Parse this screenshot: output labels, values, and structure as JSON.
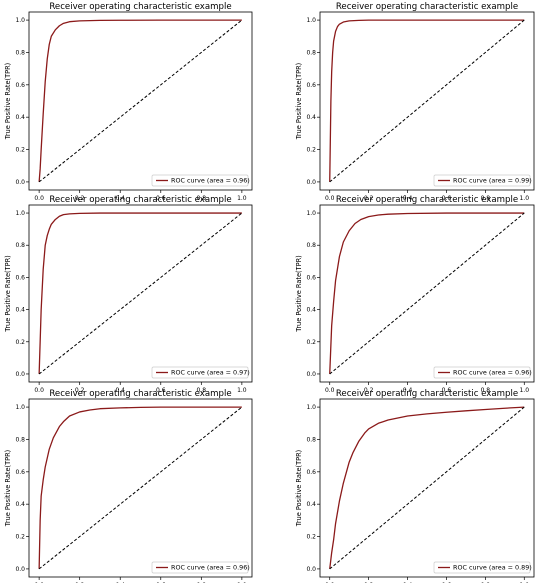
{
  "chart_data": [
    {
      "type": "line",
      "title": "Receiver operating characteristic example",
      "xlabel": "",
      "ylabel": "True Positive Rate(TPR)",
      "xlim": [
        0,
        1
      ],
      "ylim": [
        0,
        1
      ],
      "xticks": [
        "0.0",
        "0.2",
        "0.4",
        "0.6",
        "0.8",
        "1.0"
      ],
      "yticks": [
        "0.0",
        "0.2",
        "0.4",
        "0.6",
        "0.8",
        "1.0"
      ],
      "legend_position": "bottom-right",
      "series": [
        {
          "name": "ROC curve (area = 0.96)",
          "color": "#8b1a1a",
          "x": [
            0,
            0.005,
            0.01,
            0.02,
            0.03,
            0.04,
            0.05,
            0.06,
            0.08,
            0.1,
            0.12,
            0.15,
            0.2,
            0.3,
            0.4,
            0.6,
            0.8,
            1.0
          ],
          "y": [
            0,
            0.08,
            0.2,
            0.42,
            0.62,
            0.76,
            0.85,
            0.9,
            0.94,
            0.965,
            0.98,
            0.99,
            0.995,
            0.998,
            0.999,
            1.0,
            1.0,
            1.0
          ]
        },
        {
          "name": "",
          "style": "dashed",
          "color": "#000000",
          "x": [
            0,
            1
          ],
          "y": [
            0,
            1
          ]
        }
      ]
    },
    {
      "type": "line",
      "title": "Receiver operating characteristic example",
      "xlabel": "",
      "ylabel": "True Positive Rate(TPR)",
      "xlim": [
        0,
        1
      ],
      "ylim": [
        0,
        1
      ],
      "xticks": [
        "0.0",
        "0.2",
        "0.4",
        "0.6",
        "0.8",
        "1.0"
      ],
      "yticks": [
        "0.0",
        "0.2",
        "0.4",
        "0.6",
        "0.8",
        "1.0"
      ],
      "legend_position": "bottom-right",
      "series": [
        {
          "name": "ROC curve (area = 0.99)",
          "color": "#8b1a1a",
          "x": [
            0,
            0.003,
            0.006,
            0.01,
            0.015,
            0.02,
            0.03,
            0.04,
            0.05,
            0.07,
            0.1,
            0.15,
            0.2,
            0.4,
            0.6,
            1.0
          ],
          "y": [
            0,
            0.25,
            0.5,
            0.68,
            0.8,
            0.87,
            0.93,
            0.96,
            0.975,
            0.988,
            0.995,
            0.998,
            1.0,
            1.0,
            1.0,
            1.0
          ]
        },
        {
          "name": "",
          "style": "dashed",
          "color": "#000000",
          "x": [
            0,
            1
          ],
          "y": [
            0,
            1
          ]
        }
      ]
    },
    {
      "type": "line",
      "title": "Receiver operating characteristic example",
      "xlabel": "",
      "ylabel": "True Positive Rate(TPR)",
      "xlim": [
        0,
        1
      ],
      "ylim": [
        0,
        1
      ],
      "xticks": [
        "0.0",
        "0.2",
        "0.4",
        "0.6",
        "0.8",
        "1.0"
      ],
      "yticks": [
        "0.0",
        "0.2",
        "0.4",
        "0.6",
        "0.8",
        "1.0"
      ],
      "legend_position": "bottom-right",
      "series": [
        {
          "name": "ROC curve (area = 0.97)",
          "color": "#8b1a1a",
          "x": [
            0,
            0.01,
            0.02,
            0.03,
            0.04,
            0.05,
            0.06,
            0.08,
            0.1,
            0.12,
            0.15,
            0.2,
            0.3,
            0.5,
            0.7,
            1.0
          ],
          "y": [
            0,
            0.4,
            0.65,
            0.8,
            0.86,
            0.9,
            0.93,
            0.96,
            0.98,
            0.99,
            0.995,
            0.998,
            1.0,
            1.0,
            1.0,
            1.0
          ]
        },
        {
          "name": "",
          "style": "dashed",
          "color": "#000000",
          "x": [
            0,
            1
          ],
          "y": [
            0,
            1
          ]
        }
      ]
    },
    {
      "type": "line",
      "title": "Receiver operating characteristic example",
      "xlabel": "",
      "ylabel": "True Positive Rate(TPR)",
      "xlim": [
        0,
        1
      ],
      "ylim": [
        0,
        1
      ],
      "xticks": [
        "0.0",
        "0.2",
        "0.4",
        "0.6",
        "0.8",
        "1.0"
      ],
      "yticks": [
        "0.0",
        "0.2",
        "0.4",
        "0.6",
        "0.8",
        "1.0"
      ],
      "legend_position": "bottom-right",
      "series": [
        {
          "name": "ROC curve (area = 0.96)",
          "color": "#8b1a1a",
          "x": [
            0,
            0.005,
            0.01,
            0.02,
            0.03,
            0.05,
            0.07,
            0.1,
            0.13,
            0.16,
            0.2,
            0.25,
            0.3,
            0.4,
            0.6,
            0.8,
            1.0
          ],
          "y": [
            0,
            0.15,
            0.3,
            0.45,
            0.58,
            0.73,
            0.82,
            0.89,
            0.935,
            0.96,
            0.978,
            0.988,
            0.993,
            0.997,
            1.0,
            1.0,
            1.0
          ]
        },
        {
          "name": "",
          "style": "dashed",
          "color": "#000000",
          "x": [
            0,
            1
          ],
          "y": [
            0,
            1
          ]
        }
      ]
    },
    {
      "type": "line",
      "title": "Receiver operating characteristic example",
      "xlabel": "",
      "ylabel": "True Positive Rate(TPR)",
      "xlim": [
        0,
        1
      ],
      "ylim": [
        0,
        1
      ],
      "xticks": [
        "0.0",
        "0.2",
        "0.4",
        "0.6",
        "0.8",
        "1.0"
      ],
      "yticks": [
        "0.0",
        "0.2",
        "0.4",
        "0.6",
        "0.8",
        "1.0"
      ],
      "legend_position": "bottom-right",
      "series": [
        {
          "name": "ROC curve (area = 0.96)",
          "color": "#8b1a1a",
          "x": [
            0,
            0.005,
            0.01,
            0.02,
            0.03,
            0.05,
            0.07,
            0.1,
            0.12,
            0.15,
            0.2,
            0.25,
            0.3,
            0.4,
            0.5,
            0.6,
            0.8,
            1.0
          ],
          "y": [
            0,
            0.3,
            0.45,
            0.55,
            0.63,
            0.74,
            0.81,
            0.88,
            0.91,
            0.945,
            0.97,
            0.982,
            0.99,
            0.995,
            0.998,
            1.0,
            1.0,
            1.0
          ]
        },
        {
          "name": "",
          "style": "dashed",
          "color": "#000000",
          "x": [
            0,
            1
          ],
          "y": [
            0,
            1
          ]
        }
      ]
    },
    {
      "type": "line",
      "title": "Receiver operating characteristic example",
      "xlabel": "",
      "ylabel": "True Positive Rate(TPR)",
      "xlim": [
        0,
        1
      ],
      "ylim": [
        0,
        1
      ],
      "xticks": [
        "0.0",
        "0.2",
        "0.4",
        "0.6",
        "0.8",
        "1.0"
      ],
      "yticks": [
        "0.0",
        "0.2",
        "0.4",
        "0.6",
        "0.8",
        "1.0"
      ],
      "legend_position": "bottom-right",
      "series": [
        {
          "name": "ROC curve (area = 0.89)",
          "color": "#8b1a1a",
          "x": [
            0,
            0.01,
            0.02,
            0.03,
            0.05,
            0.07,
            0.1,
            0.12,
            0.15,
            0.18,
            0.2,
            0.25,
            0.3,
            0.4,
            0.5,
            0.6,
            0.7,
            0.8,
            0.9,
            1.0
          ],
          "y": [
            0,
            0.1,
            0.18,
            0.28,
            0.42,
            0.53,
            0.66,
            0.72,
            0.79,
            0.84,
            0.865,
            0.9,
            0.92,
            0.945,
            0.958,
            0.968,
            0.977,
            0.985,
            0.993,
            1.0
          ]
        },
        {
          "name": "",
          "style": "dashed",
          "color": "#000000",
          "x": [
            0,
            1
          ],
          "y": [
            0,
            1
          ]
        }
      ]
    }
  ]
}
